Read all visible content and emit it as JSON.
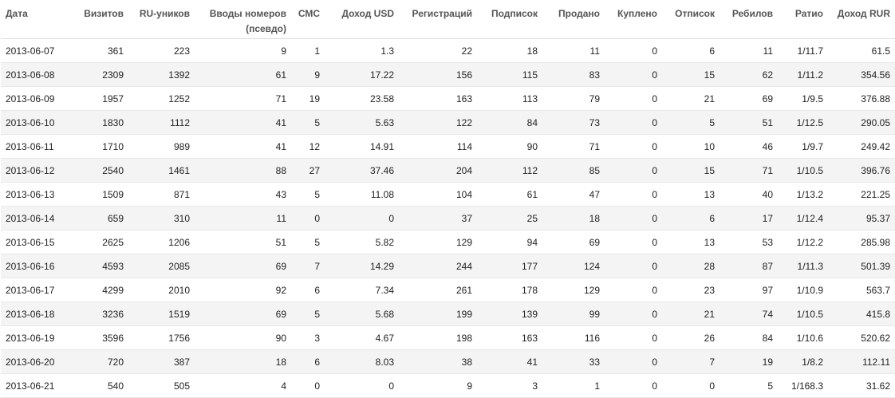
{
  "table": {
    "headers": [
      "Дата",
      "Визитов",
      "RU-уников",
      "Вводы номеров (псевдо)",
      "СМС",
      "Доход USD",
      "Регистраций",
      "Подписок",
      "Продано",
      "Куплено",
      "Отписок",
      "Ребилов",
      "Ратио",
      "Доход RUR"
    ],
    "rows": [
      [
        "2013-06-07",
        "361",
        "223",
        "9",
        "1",
        "1.3",
        "22",
        "18",
        "11",
        "0",
        "6",
        "11",
        "1/11.7",
        "61.5"
      ],
      [
        "2013-06-08",
        "2309",
        "1392",
        "61",
        "9",
        "17.22",
        "156",
        "115",
        "83",
        "0",
        "15",
        "62",
        "1/11.2",
        "354.56"
      ],
      [
        "2013-06-09",
        "1957",
        "1252",
        "71",
        "19",
        "23.58",
        "163",
        "113",
        "79",
        "0",
        "21",
        "69",
        "1/9.5",
        "376.88"
      ],
      [
        "2013-06-10",
        "1830",
        "1112",
        "41",
        "5",
        "5.63",
        "122",
        "84",
        "73",
        "0",
        "5",
        "51",
        "1/12.5",
        "290.05"
      ],
      [
        "2013-06-11",
        "1710",
        "989",
        "41",
        "12",
        "14.91",
        "114",
        "90",
        "71",
        "0",
        "10",
        "46",
        "1/9.7",
        "249.42"
      ],
      [
        "2013-06-12",
        "2540",
        "1461",
        "88",
        "27",
        "37.46",
        "204",
        "112",
        "85",
        "0",
        "15",
        "71",
        "1/10.5",
        "396.76"
      ],
      [
        "2013-06-13",
        "1509",
        "871",
        "43",
        "5",
        "11.08",
        "104",
        "61",
        "47",
        "0",
        "13",
        "40",
        "1/13.2",
        "221.25"
      ],
      [
        "2013-06-14",
        "659",
        "310",
        "11",
        "0",
        "0",
        "37",
        "25",
        "18",
        "0",
        "6",
        "17",
        "1/12.4",
        "95.37"
      ],
      [
        "2013-06-15",
        "2625",
        "1206",
        "51",
        "5",
        "5.82",
        "129",
        "94",
        "69",
        "0",
        "13",
        "53",
        "1/12.2",
        "285.98"
      ],
      [
        "2013-06-16",
        "4593",
        "2085",
        "69",
        "7",
        "14.29",
        "244",
        "177",
        "124",
        "0",
        "28",
        "87",
        "1/11.3",
        "501.39"
      ],
      [
        "2013-06-17",
        "4299",
        "2010",
        "92",
        "6",
        "7.34",
        "261",
        "178",
        "129",
        "0",
        "23",
        "97",
        "1/10.9",
        "563.7"
      ],
      [
        "2013-06-18",
        "3236",
        "1519",
        "69",
        "5",
        "5.68",
        "199",
        "139",
        "99",
        "0",
        "21",
        "74",
        "1/10.5",
        "415.8"
      ],
      [
        "2013-06-19",
        "3596",
        "1756",
        "90",
        "3",
        "4.67",
        "198",
        "163",
        "116",
        "0",
        "26",
        "84",
        "1/10.6",
        "520.62"
      ],
      [
        "2013-06-20",
        "720",
        "387",
        "18",
        "6",
        "8.03",
        "38",
        "41",
        "33",
        "0",
        "7",
        "19",
        "1/8.2",
        "112.11"
      ],
      [
        "2013-06-21",
        "540",
        "505",
        "4",
        "0",
        "0",
        "9",
        "3",
        "1",
        "0",
        "0",
        "5",
        "1/168.3",
        "31.62"
      ]
    ]
  },
  "colors": {
    "header_text": "#555555",
    "row_alt_bg": "#f4f4f4",
    "row_border": "#e8e8e8"
  }
}
